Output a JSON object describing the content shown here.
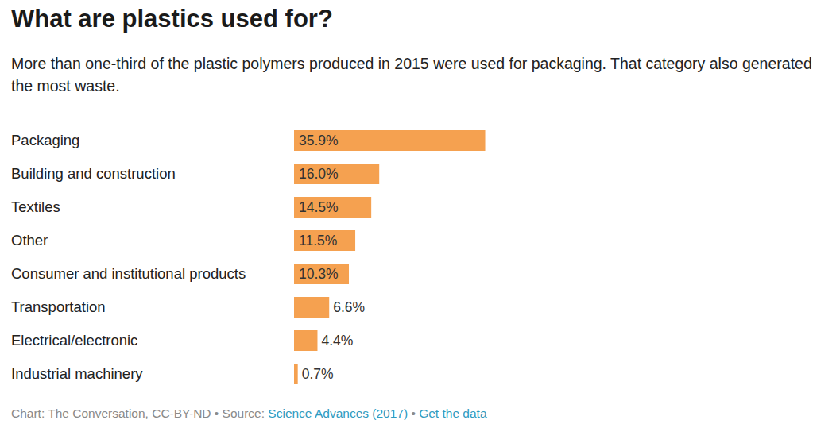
{
  "chart_data": {
    "type": "bar",
    "orientation": "horizontal",
    "title": "What are plastics used for?",
    "subtitle": "More than one-third of the plastic polymers produced in 2015 were used for packaging. That category also generated the most waste.",
    "categories": [
      "Packaging",
      "Building and construction",
      "Textiles",
      "Other",
      "Consumer and institutional products",
      "Transportation",
      "Electrical/electronic",
      "Industrial machinery"
    ],
    "values": [
      35.9,
      16.0,
      14.5,
      11.5,
      10.3,
      6.6,
      4.4,
      0.7
    ],
    "value_labels": [
      "35.9%",
      "16.0%",
      "14.5%",
      "11.5%",
      "10.3%",
      "6.6%",
      "4.4%",
      "0.7%"
    ],
    "color": "#f5a150",
    "xlim": [
      0,
      100
    ],
    "xticks": [
      0,
      100
    ],
    "tick_labels": "y",
    "grid": false,
    "data_labels": true,
    "footer": {
      "credit": "Chart: The Conversation, CC-BY-ND",
      "separator": "•",
      "source_label": "Source:",
      "source": "Science Advances (2017)",
      "data_link": "Get the data"
    }
  }
}
